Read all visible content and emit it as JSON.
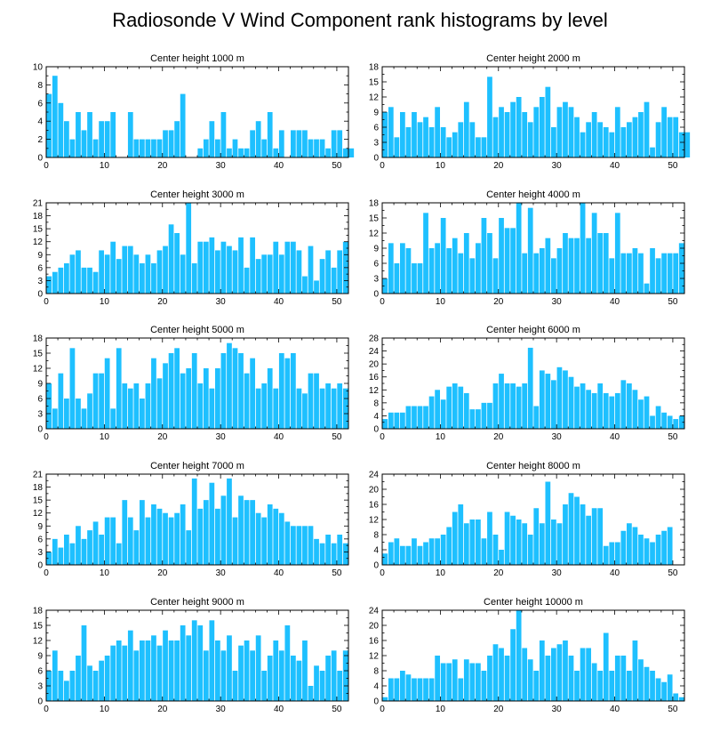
{
  "title": "Radiosonde V Wind Component rank histograms by level",
  "bar_color": "#1ec0ff",
  "chart_data": [
    {
      "type": "bar",
      "title": "Center height 1000 m",
      "ylim": [
        0,
        10
      ],
      "yticks": [
        0,
        2,
        4,
        6,
        8,
        10
      ],
      "xlim": [
        0,
        52
      ],
      "xticks": [
        0,
        10,
        20,
        30,
        40,
        50
      ],
      "values": [
        7,
        9,
        6,
        4,
        2,
        5,
        3,
        5,
        2,
        4,
        4,
        5,
        0,
        0,
        5,
        2,
        2,
        2,
        2,
        2,
        3,
        3,
        4,
        7,
        0,
        0,
        1,
        2,
        4,
        2,
        5,
        1,
        2,
        1,
        1,
        3,
        4,
        2,
        5,
        1,
        3,
        0,
        3,
        3,
        3,
        2,
        2,
        2,
        1,
        3,
        3,
        1,
        1
      ]
    },
    {
      "type": "bar",
      "title": "Center height 2000 m",
      "ylim": [
        0,
        18
      ],
      "yticks": [
        0,
        3,
        6,
        9,
        12,
        15,
        18
      ],
      "xlim": [
        0,
        52
      ],
      "xticks": [
        0,
        10,
        20,
        30,
        40,
        50
      ],
      "values": [
        9,
        10,
        4,
        9,
        6,
        9,
        7,
        8,
        6,
        10,
        6,
        4,
        5,
        7,
        11,
        7,
        4,
        4,
        16,
        8,
        10,
        9,
        11,
        12,
        9,
        7,
        10,
        12,
        14,
        6,
        10,
        11,
        10,
        8,
        5,
        7,
        9,
        7,
        6,
        5,
        10,
        6,
        7,
        8,
        9,
        11,
        2,
        7,
        10,
        8,
        8,
        5,
        5
      ]
    },
    {
      "type": "bar",
      "title": "Center height 3000 m",
      "ylim": [
        0,
        21
      ],
      "yticks": [
        0,
        3,
        6,
        9,
        12,
        15,
        18,
        21
      ],
      "xlim": [
        0,
        52
      ],
      "xticks": [
        0,
        10,
        20,
        30,
        40,
        50
      ],
      "values": [
        4,
        5,
        6,
        7,
        9,
        10,
        6,
        6,
        5,
        10,
        9,
        12,
        8,
        11,
        11,
        9,
        7,
        9,
        7,
        10,
        11,
        16,
        14,
        9,
        21,
        7,
        12,
        12,
        13,
        10,
        12,
        11,
        10,
        13,
        6,
        13,
        8,
        9,
        9,
        12,
        9,
        12,
        12,
        10,
        4,
        11,
        3,
        8,
        10,
        6,
        10,
        12
      ]
    },
    {
      "type": "bar",
      "title": "Center height 4000 m",
      "ylim": [
        0,
        18
      ],
      "yticks": [
        0,
        3,
        6,
        9,
        12,
        15,
        18
      ],
      "xlim": [
        0,
        52
      ],
      "xticks": [
        0,
        10,
        20,
        30,
        40,
        50
      ],
      "values": [
        3,
        10,
        6,
        10,
        9,
        6,
        6,
        16,
        9,
        10,
        15,
        9,
        11,
        8,
        12,
        7,
        10,
        15,
        12,
        7,
        15,
        13,
        13,
        18,
        8,
        17,
        8,
        9,
        11,
        7,
        9,
        12,
        11,
        11,
        18,
        11,
        16,
        12,
        12,
        7,
        16,
        8,
        8,
        9,
        8,
        2,
        9,
        7,
        8,
        8,
        8,
        10
      ]
    },
    {
      "type": "bar",
      "title": "Center height 5000 m",
      "ylim": [
        0,
        18
      ],
      "yticks": [
        0,
        3,
        6,
        9,
        12,
        15,
        18
      ],
      "xlim": [
        0,
        52
      ],
      "xticks": [
        0,
        10,
        20,
        30,
        40,
        50
      ],
      "values": [
        9,
        4,
        11,
        6,
        16,
        6,
        4,
        7,
        11,
        11,
        14,
        4,
        16,
        9,
        8,
        9,
        6,
        9,
        14,
        10,
        13,
        15,
        16,
        11,
        12,
        15,
        9,
        12,
        8,
        12,
        15,
        17,
        16,
        15,
        11,
        14,
        8,
        9,
        12,
        8,
        15,
        14,
        15,
        8,
        7,
        11,
        11,
        8,
        9,
        8,
        9,
        8
      ]
    },
    {
      "type": "bar",
      "title": "Center height 6000 m",
      "ylim": [
        0,
        28
      ],
      "yticks": [
        0,
        4,
        8,
        12,
        16,
        20,
        24,
        28
      ],
      "xlim": [
        0,
        52
      ],
      "xticks": [
        0,
        10,
        20,
        30,
        40,
        50
      ],
      "values": [
        3,
        5,
        5,
        5,
        7,
        7,
        7,
        7,
        10,
        12,
        9,
        13,
        14,
        13,
        11,
        6,
        6,
        8,
        8,
        14,
        17,
        14,
        14,
        13,
        14,
        25,
        7,
        18,
        17,
        15,
        19,
        18,
        16,
        13,
        14,
        12,
        11,
        14,
        11,
        10,
        11,
        15,
        14,
        12,
        9,
        10,
        4,
        7,
        5,
        4,
        3,
        4
      ]
    },
    {
      "type": "bar",
      "title": "Center height 7000 m",
      "ylim": [
        0,
        21
      ],
      "yticks": [
        0,
        3,
        6,
        9,
        12,
        15,
        18,
        21
      ],
      "xlim": [
        0,
        52
      ],
      "xticks": [
        0,
        10,
        20,
        30,
        40,
        50
      ],
      "values": [
        3,
        6,
        4,
        7,
        5,
        9,
        6,
        8,
        10,
        7,
        11,
        11,
        5,
        15,
        11,
        8,
        15,
        11,
        14,
        13,
        12,
        11,
        12,
        14,
        8,
        20,
        13,
        15,
        19,
        13,
        16,
        20,
        11,
        16,
        15,
        15,
        12,
        11,
        14,
        13,
        12,
        10,
        9,
        9,
        9,
        9,
        6,
        5,
        7,
        5,
        7,
        5
      ]
    },
    {
      "type": "bar",
      "title": "Center height 8000 m",
      "ylim": [
        0,
        24
      ],
      "yticks": [
        0,
        4,
        8,
        12,
        16,
        20,
        24
      ],
      "xlim": [
        0,
        52
      ],
      "xticks": [
        0,
        10,
        20,
        30,
        40,
        50
      ],
      "values": [
        3,
        6,
        7,
        5,
        5,
        7,
        5,
        6,
        7,
        7,
        8,
        10,
        14,
        16,
        11,
        12,
        12,
        7,
        14,
        8,
        4,
        14,
        13,
        12,
        11,
        8,
        15,
        11,
        22,
        12,
        11,
        16,
        19,
        18,
        16,
        13,
        15,
        15,
        5,
        6,
        6,
        9,
        11,
        10,
        8,
        7,
        6,
        8,
        9,
        10
      ]
    },
    {
      "type": "bar",
      "title": "Center height 9000 m",
      "ylim": [
        0,
        18
      ],
      "yticks": [
        0,
        3,
        6,
        9,
        12,
        15,
        18
      ],
      "xlim": [
        0,
        52
      ],
      "xticks": [
        0,
        10,
        20,
        30,
        40,
        50
      ],
      "values": [
        6,
        10,
        6,
        4,
        6,
        9,
        15,
        7,
        6,
        8,
        9,
        11,
        12,
        11,
        14,
        10,
        12,
        12,
        13,
        11,
        14,
        12,
        12,
        15,
        13,
        16,
        15,
        10,
        16,
        12,
        10,
        13,
        6,
        11,
        12,
        10,
        13,
        6,
        9,
        12,
        10,
        15,
        9,
        8,
        12,
        3,
        7,
        6,
        9,
        10,
        6,
        10
      ]
    },
    {
      "type": "bar",
      "title": "Center height 10000 m",
      "ylim": [
        0,
        24
      ],
      "yticks": [
        0,
        4,
        8,
        12,
        16,
        20,
        24
      ],
      "xlim": [
        0,
        52
      ],
      "xticks": [
        0,
        10,
        20,
        30,
        40,
        50
      ],
      "values": [
        1,
        6,
        6,
        8,
        7,
        6,
        6,
        6,
        6,
        12,
        10,
        10,
        11,
        6,
        11,
        10,
        10,
        8,
        12,
        15,
        14,
        12,
        19,
        24,
        14,
        11,
        8,
        16,
        12,
        14,
        15,
        16,
        12,
        8,
        14,
        14,
        10,
        8,
        18,
        8,
        12,
        12,
        8,
        16,
        11,
        9,
        8,
        6,
        5,
        7,
        2,
        1
      ]
    }
  ]
}
